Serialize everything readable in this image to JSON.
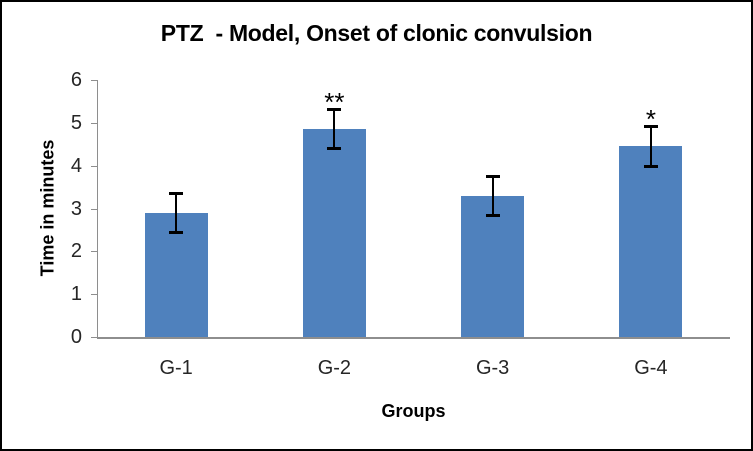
{
  "chart_data": {
    "type": "bar",
    "title": "PTZ  - Model, Onset of clonic convulsion",
    "xlabel": "Groups",
    "ylabel": "Time in minutes",
    "categories": [
      "G-1",
      "G-2",
      "G-3",
      "G-4"
    ],
    "values": [
      2.9,
      4.85,
      3.3,
      4.45
    ],
    "errors": [
      0.47,
      0.47,
      0.47,
      0.48
    ],
    "annotations": [
      "",
      "**",
      "",
      "*"
    ],
    "ylim": [
      0,
      6
    ],
    "ytick_step": 1,
    "grid": false,
    "legend": false,
    "bar_color": "#4F81BD",
    "error_bar_color": "#000000",
    "axis_color": "#8E8E8E",
    "tick_label_color": "#262626",
    "title_color": "#000000"
  }
}
